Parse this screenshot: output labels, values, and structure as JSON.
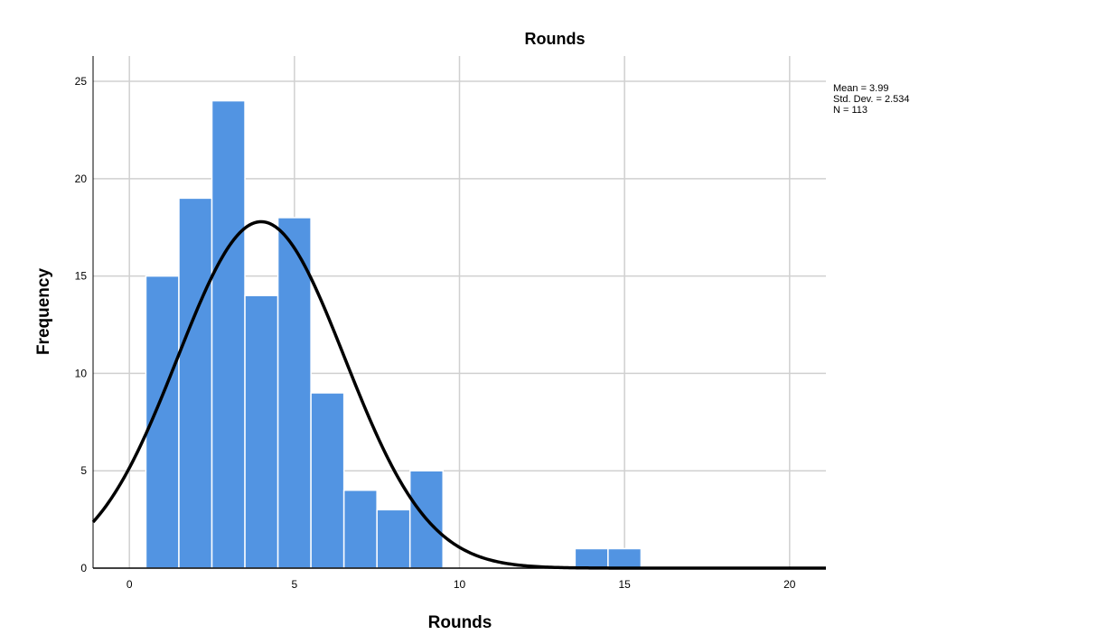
{
  "chart_data": {
    "type": "bar",
    "title": "Rounds",
    "xlabel": "Rounds",
    "ylabel": "Frequency",
    "bin_width": 1,
    "bins": [
      {
        "x": 1,
        "value": 15
      },
      {
        "x": 2,
        "value": 19
      },
      {
        "x": 3,
        "value": 24
      },
      {
        "x": 4,
        "value": 14
      },
      {
        "x": 5,
        "value": 18
      },
      {
        "x": 6,
        "value": 9
      },
      {
        "x": 7,
        "value": 4
      },
      {
        "x": 8,
        "value": 3
      },
      {
        "x": 9,
        "value": 5
      },
      {
        "x": 14,
        "value": 1
      },
      {
        "x": 15,
        "value": 1
      }
    ],
    "xlim": [
      -1.1,
      21.1
    ],
    "ylim": [
      0,
      26.3
    ],
    "x_ticks": [
      0,
      5,
      10,
      15,
      20
    ],
    "y_ticks": [
      0,
      5,
      10,
      15,
      20,
      25
    ],
    "grid": true,
    "bar_color": "#5294e2",
    "curve_color": "#000000",
    "normal_curve": {
      "mean": 3.99,
      "sd": 2.534,
      "n": 113
    },
    "stats": {
      "mean": "Mean = 3.99",
      "sd": "Std. Dev. = 2.534",
      "n": "N = 113"
    }
  }
}
